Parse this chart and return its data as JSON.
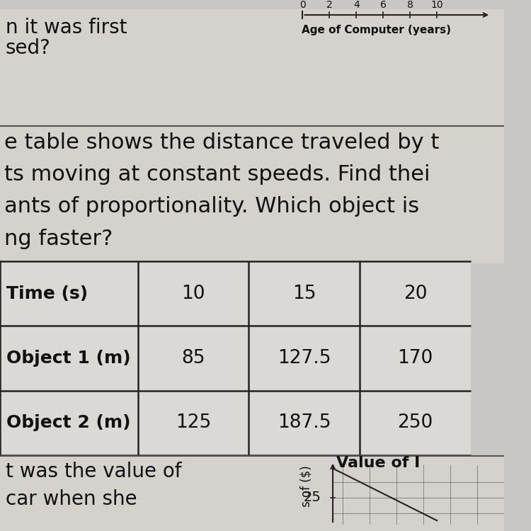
{
  "top_left_lines": [
    "n it was first",
    "sed?"
  ],
  "paragraph_lines": [
    "e table shows the distance traveled by t",
    "ts moving at constant speeds. Find thei",
    "ants of proportionality. Which object is",
    "ng faster?"
  ],
  "table_rows": [
    [
      "Time (s)",
      "10",
      "15",
      "20"
    ],
    [
      "Object 1 (m)",
      "85",
      "127.5",
      "170"
    ],
    [
      "Object 2 (m)",
      "125",
      "187.5",
      "250"
    ]
  ],
  "bottom_left_lines": [
    "t was the value of",
    "car when she"
  ],
  "bottom_right_title": "Value of I",
  "bottom_right_label": "s of ($)",
  "bottom_right_val": "25",
  "bg_light": "#c9c7c5",
  "bg_paper": "#d5d2ce",
  "table_cell_bg": "#dbd9d6",
  "border_color": "#222222",
  "text_color": "#111111",
  "separator_color": "#555555",
  "top_right_axis_label": "Age of Computer (years)",
  "top_right_axis_nums": "0    2    4    6    8   10"
}
